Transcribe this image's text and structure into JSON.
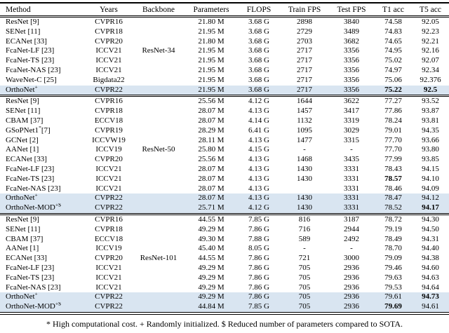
{
  "colors": {
    "row_highlight": "#d9e5f1",
    "rule": "#000000"
  },
  "footnote": "* High computational cost. + Randomly initialized. $ Reduced number of parameters compared to SOTA.",
  "table": {
    "columns": [
      "Method",
      "Years",
      "Backbone",
      "Parameters",
      "FLOPS",
      "Train FPS",
      "Test FPS",
      "T1 acc",
      "T5 acc"
    ],
    "groups": [
      {
        "backbone": "ResNet-34",
        "label_row": 3,
        "rows": [
          {
            "m": "ResNet [9]",
            "sup": "",
            "tail": "",
            "yr": "CVPR16",
            "par": "21.80 M",
            "fl": "3.68 G",
            "tr": "2898",
            "te": "3840",
            "t1": "74.58",
            "t5": "92.05",
            "t1b": false,
            "t5b": false,
            "hl": false
          },
          {
            "m": "SENet [11]",
            "sup": "",
            "tail": "",
            "yr": "CVPR18",
            "par": "21.95 M",
            "fl": "3.68 G",
            "tr": "2729",
            "te": "3489",
            "t1": "74.83",
            "t5": "92.23",
            "t1b": false,
            "t5b": false,
            "hl": false
          },
          {
            "m": "ECANet [33]",
            "sup": "",
            "tail": "",
            "yr": "CVPR20",
            "par": "21.80 M",
            "fl": "3.68 G",
            "tr": "2703",
            "te": "3682",
            "t1": "74.65",
            "t5": "92.21",
            "t1b": false,
            "t5b": false,
            "hl": false
          },
          {
            "m": "FcaNet-LF [23]",
            "sup": "",
            "tail": "",
            "yr": "ICCV21",
            "par": "21.95 M",
            "fl": "3.68 G",
            "tr": "2717",
            "te": "3356",
            "t1": "74.95",
            "t5": "92.16",
            "t1b": false,
            "t5b": false,
            "hl": false
          },
          {
            "m": "FcaNet-TS [23]",
            "sup": "",
            "tail": "",
            "yr": "ICCV21",
            "par": "21.95 M",
            "fl": "3.68 G",
            "tr": "2717",
            "te": "3356",
            "t1": "75.02",
            "t5": "92.07",
            "t1b": false,
            "t5b": false,
            "hl": false
          },
          {
            "m": "FcaNet-NAS [23]",
            "sup": "",
            "tail": "",
            "yr": "ICCV21",
            "par": "21.95 M",
            "fl": "3.68 G",
            "tr": "2717",
            "te": "3356",
            "t1": "74.97",
            "t5": "92.34",
            "t1b": false,
            "t5b": false,
            "hl": false
          },
          {
            "m": "WaveNet-C [25]",
            "sup": "",
            "tail": "",
            "yr": "Bigdata22",
            "par": "21.95 M",
            "fl": "3.68 G",
            "tr": "2717",
            "te": "3356",
            "t1": "75.06",
            "t5": "92.376",
            "t1b": false,
            "t5b": false,
            "hl": false
          },
          {
            "m": "OrthoNet",
            "sup": "+",
            "tail": "",
            "yr": "CVPR22",
            "par": "21.95 M",
            "fl": "3.68 G",
            "tr": "2717",
            "te": "3356",
            "t1": "75.22",
            "t5": "92.5",
            "t1b": true,
            "t5b": true,
            "hl": true
          }
        ]
      },
      {
        "backbone": "ResNet-50",
        "label_row": 5,
        "rows": [
          {
            "m": "ResNet [9]",
            "sup": "",
            "tail": "",
            "yr": "CVPR16",
            "par": "25.56 M",
            "fl": "4.12 G",
            "tr": "1644",
            "te": "3622",
            "t1": "77.27",
            "t5": "93.52",
            "t1b": false,
            "t5b": false,
            "hl": false
          },
          {
            "m": "SENet [11]",
            "sup": "",
            "tail": "",
            "yr": "CVPR18",
            "par": "28.07 M",
            "fl": "4.13 G",
            "tr": "1457",
            "te": "3417",
            "t1": "77.86",
            "t5": "93.87",
            "t1b": false,
            "t5b": false,
            "hl": false
          },
          {
            "m": "CBAM [37]",
            "sup": "",
            "tail": "",
            "yr": "ECCV18",
            "par": "28.07 M",
            "fl": "4.14 G",
            "tr": "1132",
            "te": "3319",
            "t1": "78.24",
            "t5": "93.81",
            "t1b": false,
            "t5b": false,
            "hl": false
          },
          {
            "m": "GSoPNet1",
            "sup": "*",
            "tail": "[7]",
            "yr": "CVPR19",
            "par": "28.29 M",
            "fl": "6.41 G",
            "tr": "1095",
            "te": "3029",
            "t1": "79.01",
            "t5": "94.35",
            "t1b": false,
            "t5b": false,
            "hl": false
          },
          {
            "m": "GCNet [2]",
            "sup": "",
            "tail": "",
            "yr": "ICCVW19",
            "par": "28.11 M",
            "fl": "4.13 G",
            "tr": "1477",
            "te": "3315",
            "t1": "77.70",
            "t5": "93.66",
            "t1b": false,
            "t5b": false,
            "hl": false
          },
          {
            "m": "AANet [1]",
            "sup": "",
            "tail": "",
            "yr": "ICCV19",
            "par": "25.80 M",
            "fl": "4.15 G",
            "tr": "-",
            "te": "-",
            "t1": "77.70",
            "t5": "93.80",
            "t1b": false,
            "t5b": false,
            "hl": false
          },
          {
            "m": "ECANet [33]",
            "sup": "",
            "tail": "",
            "yr": "CVPR20",
            "par": "25.56 M",
            "fl": "4.13 G",
            "tr": "1468",
            "te": "3435",
            "t1": "77.99",
            "t5": "93.85",
            "t1b": false,
            "t5b": false,
            "hl": false
          },
          {
            "m": "FcaNet-LF [23]",
            "sup": "",
            "tail": "",
            "yr": "ICCV21",
            "par": "28.07 M",
            "fl": "4.13 G",
            "tr": "1430",
            "te": "3331",
            "t1": "78.43",
            "t5": "94.15",
            "t1b": false,
            "t5b": false,
            "hl": false
          },
          {
            "m": "FcaNet-TS [23]",
            "sup": "",
            "tail": "",
            "yr": "ICCV21",
            "par": "28.07 M",
            "fl": "4.13 G",
            "tr": "1430",
            "te": "3331",
            "t1": "78.57",
            "t5": "94.10",
            "t1b": true,
            "t5b": false,
            "hl": false
          },
          {
            "m": "FcaNet-NAS [23]",
            "sup": "",
            "tail": "",
            "yr": "ICCV21",
            "par": "28.07 M",
            "fl": "4.13 G",
            "tr": "",
            "te": "3331",
            "t1": "78.46",
            "t5": "94.09",
            "t1b": false,
            "t5b": false,
            "hl": false
          },
          {
            "m": "OrthoNet",
            "sup": "+",
            "tail": "",
            "yr": "CVPR22",
            "par": "28.07 M",
            "fl": "4.13 G",
            "tr": "1430",
            "te": "3331",
            "t1": "78.47",
            "t5": "94.12",
            "t1b": false,
            "t5b": false,
            "hl": true
          },
          {
            "m": "OrthoNet-MOD",
            "sup": "+$",
            "tail": "",
            "yr": "CVPR22",
            "par": "25.71 M",
            "fl": "4.12 G",
            "tr": "1430",
            "te": "3331",
            "t1": "78.52",
            "t5": "94.17",
            "t1b": false,
            "t5b": true,
            "hl": true
          }
        ]
      },
      {
        "backbone": "ResNet-101",
        "label_row": 4,
        "rows": [
          {
            "m": "ResNet [9]",
            "sup": "",
            "tail": "",
            "yr": "CVPR16",
            "par": "44.55 M",
            "fl": "7.85 G",
            "tr": "816",
            "te": "3187",
            "t1": "78.72",
            "t5": "94.30",
            "t1b": false,
            "t5b": false,
            "hl": false
          },
          {
            "m": "SENet [11]",
            "sup": "",
            "tail": "",
            "yr": "CVPR18",
            "par": "49.29 M",
            "fl": "7.86 G",
            "tr": "716",
            "te": "2944",
            "t1": "79.19",
            "t5": "94.50",
            "t1b": false,
            "t5b": false,
            "hl": false
          },
          {
            "m": "CBAM [37]",
            "sup": "",
            "tail": "",
            "yr": "ECCV18",
            "par": "49.30 M",
            "fl": "7.88 G",
            "tr": "589",
            "te": "2492",
            "t1": "78.49",
            "t5": "94.31",
            "t1b": false,
            "t5b": false,
            "hl": false
          },
          {
            "m": "AANet [1]",
            "sup": "",
            "tail": "",
            "yr": "ICCV19",
            "par": "45.40 M",
            "fl": "8.05 G",
            "tr": "-",
            "te": "-",
            "t1": "78.70",
            "t5": "94.40",
            "t1b": false,
            "t5b": false,
            "hl": false
          },
          {
            "m": "ECANet [33]",
            "sup": "",
            "tail": "",
            "yr": "CVPR20",
            "par": "44.55 M",
            "fl": "7.86 G",
            "tr": "721",
            "te": "3000",
            "t1": "79.09",
            "t5": "94.38",
            "t1b": false,
            "t5b": false,
            "hl": false
          },
          {
            "m": "FcaNet-LF [23]",
            "sup": "",
            "tail": "",
            "yr": "ICCV21",
            "par": "49.29 M",
            "fl": "7.86 G",
            "tr": "705",
            "te": "2936",
            "t1": "79.46",
            "t5": "94.60",
            "t1b": false,
            "t5b": false,
            "hl": false
          },
          {
            "m": "FcaNet-TS [23]",
            "sup": "",
            "tail": "",
            "yr": "ICCV21",
            "par": "49.29 M",
            "fl": "7.86 G",
            "tr": "705",
            "te": "2936",
            "t1": "79.63",
            "t5": "94.63",
            "t1b": false,
            "t5b": false,
            "hl": false
          },
          {
            "m": "FcaNet-NAS [23]",
            "sup": "",
            "tail": "",
            "yr": "ICCV21",
            "par": "49.29 M",
            "fl": "7.86 G",
            "tr": "705",
            "te": "2936",
            "t1": "79.53",
            "t5": "94.64",
            "t1b": false,
            "t5b": false,
            "hl": false
          },
          {
            "m": "OrthoNet",
            "sup": "+",
            "tail": "",
            "yr": "CVPR22",
            "par": "49.29 M",
            "fl": "7.86 G",
            "tr": "705",
            "te": "2936",
            "t1": "79.61",
            "t5": "94.73",
            "t1b": false,
            "t5b": true,
            "hl": true
          },
          {
            "m": "OrthoNet-MOD",
            "sup": "+$",
            "tail": "",
            "yr": "CVPR22",
            "par": "44.84 M",
            "fl": "7.85 G",
            "tr": "705",
            "te": "2936",
            "t1": "79.69",
            "t5": "94.61",
            "t1b": true,
            "t5b": false,
            "hl": true
          }
        ]
      }
    ]
  }
}
